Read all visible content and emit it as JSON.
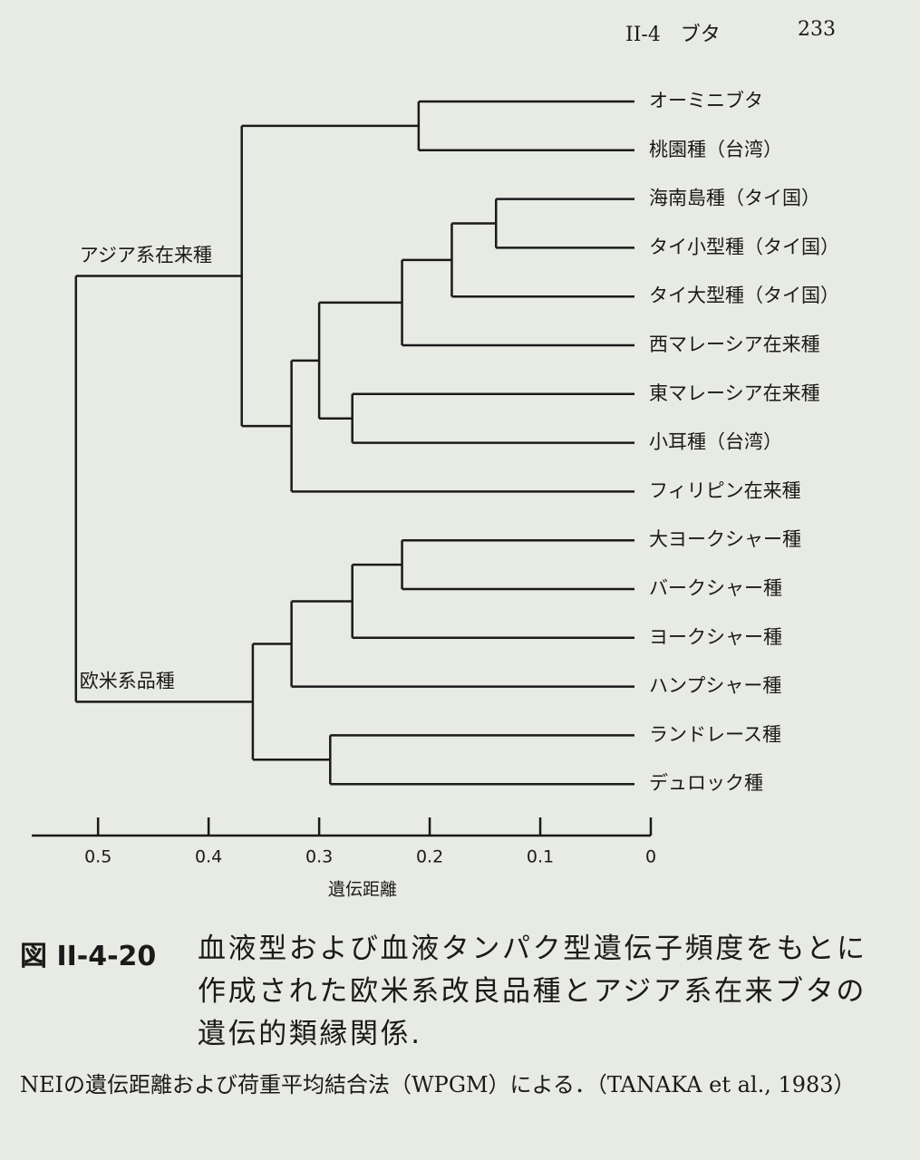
{
  "header": {
    "section": "II-4　ブタ",
    "page": "233"
  },
  "chart_data": {
    "type": "dendrogram",
    "xlabel": "遺伝距離",
    "xlim": [
      0.56,
      0
    ],
    "xticks": [
      0.5,
      0.4,
      0.3,
      0.2,
      0.1,
      0
    ],
    "color": "#1a1a1a",
    "tree": {
      "height": 0.52,
      "children": [
        {
          "label": "アジア系在来種",
          "height": 0.37,
          "children": [
            {
              "height": 0.21,
              "children": [
                "オーミニブタ",
                "桃園種（台湾）"
              ]
            },
            {
              "height": 0.325,
              "children": [
                {
                  "height": 0.3,
                  "children": [
                    {
                      "height": 0.225,
                      "children": [
                        {
                          "height": 0.18,
                          "children": [
                            {
                              "height": 0.14,
                              "children": [
                                "海南島種（タイ国）",
                                "タイ小型種（タイ国）"
                              ]
                            },
                            "タイ大型種（タイ国）"
                          ]
                        },
                        "西マレーシア在来種"
                      ]
                    },
                    {
                      "height": 0.27,
                      "children": [
                        "東マレーシア在来種",
                        "小耳種（台湾）"
                      ]
                    }
                  ]
                },
                "フィリピン在来種"
              ]
            }
          ]
        },
        {
          "label": "欧米系品種",
          "height": 0.36,
          "children": [
            {
              "height": 0.325,
              "children": [
                {
                  "height": 0.27,
                  "children": [
                    {
                      "height": 0.225,
                      "children": [
                        "大ヨークシャー種",
                        "バークシャー種"
                      ]
                    },
                    "ヨークシャー種"
                  ]
                },
                "ハンプシャー種"
              ]
            },
            {
              "height": 0.29,
              "children": [
                "ランドレース種",
                "デュロック種"
              ]
            }
          ]
        }
      ]
    }
  },
  "caption": {
    "label": "図 II-4-20",
    "text": "血液型および血液タンパク型遺伝子頻度をもとに作成された欧米系改良品種とアジア系在来ブタの遺伝的類縁関係."
  },
  "note": "NEIの遺伝距離および荷重平均結合法（WPGM）による．（TANAKA et al., 1983）"
}
